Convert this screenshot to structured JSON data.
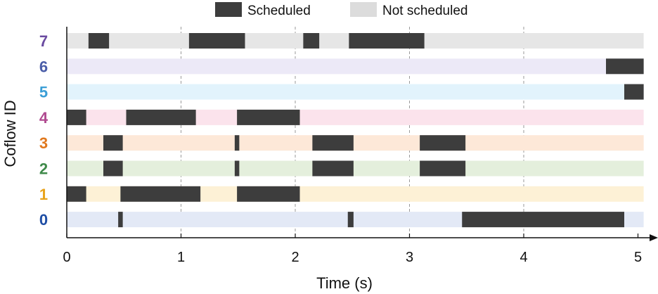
{
  "chart_data": {
    "type": "gantt",
    "xlabel": "Time (s)",
    "ylabel": "Coflow ID",
    "xlim": [
      0,
      5.05
    ],
    "xticks": [
      0,
      1,
      2,
      3,
      4,
      5
    ],
    "grid": "vertical dashed at x=1,2,3,4",
    "legend_placement": "top-center",
    "legend": [
      {
        "label": "Scheduled",
        "color": "#3d3d3d"
      },
      {
        "label": "Not scheduled",
        "color": "#dcdcdc"
      }
    ],
    "rows": [
      {
        "id": "7",
        "label_color": "#6a4aa0",
        "track_color": "#e6e6e6",
        "scheduled": [
          [
            0.19,
            0.37
          ],
          [
            1.07,
            1.56
          ],
          [
            2.07,
            2.21
          ],
          [
            2.47,
            3.13
          ]
        ]
      },
      {
        "id": "6",
        "label_color": "#4a5da8",
        "track_color": "#ece9f7",
        "scheduled": [
          [
            4.72,
            5.05
          ]
        ]
      },
      {
        "id": "5",
        "label_color": "#3b9ed6",
        "track_color": "#e2f3fc",
        "scheduled": [
          [
            4.88,
            5.05
          ]
        ]
      },
      {
        "id": "4",
        "label_color": "#b04a90",
        "track_color": "#fbe3ec",
        "scheduled": [
          [
            0.0,
            0.17
          ],
          [
            0.52,
            1.13
          ],
          [
            1.49,
            2.04
          ]
        ]
      },
      {
        "id": "3",
        "label_color": "#e0781e",
        "track_color": "#fde8d8",
        "scheduled": [
          [
            0.32,
            0.49
          ],
          [
            1.47,
            1.51
          ],
          [
            2.15,
            2.51
          ],
          [
            3.09,
            3.49
          ]
        ]
      },
      {
        "id": "2",
        "label_color": "#3f8a4a",
        "track_color": "#e4efdc",
        "scheduled": [
          [
            0.32,
            0.49
          ],
          [
            1.47,
            1.51
          ],
          [
            2.15,
            2.51
          ],
          [
            3.09,
            3.49
          ]
        ]
      },
      {
        "id": "1",
        "label_color": "#e8a31c",
        "track_color": "#fdf1d6",
        "scheduled": [
          [
            0.0,
            0.17
          ],
          [
            0.47,
            1.17
          ],
          [
            1.49,
            2.04
          ]
        ]
      },
      {
        "id": "0",
        "label_color": "#1f4ea5",
        "track_color": "#e3e9f6",
        "scheduled": [
          [
            0.45,
            0.49
          ],
          [
            2.46,
            2.51
          ],
          [
            3.46,
            4.88
          ]
        ]
      }
    ]
  }
}
